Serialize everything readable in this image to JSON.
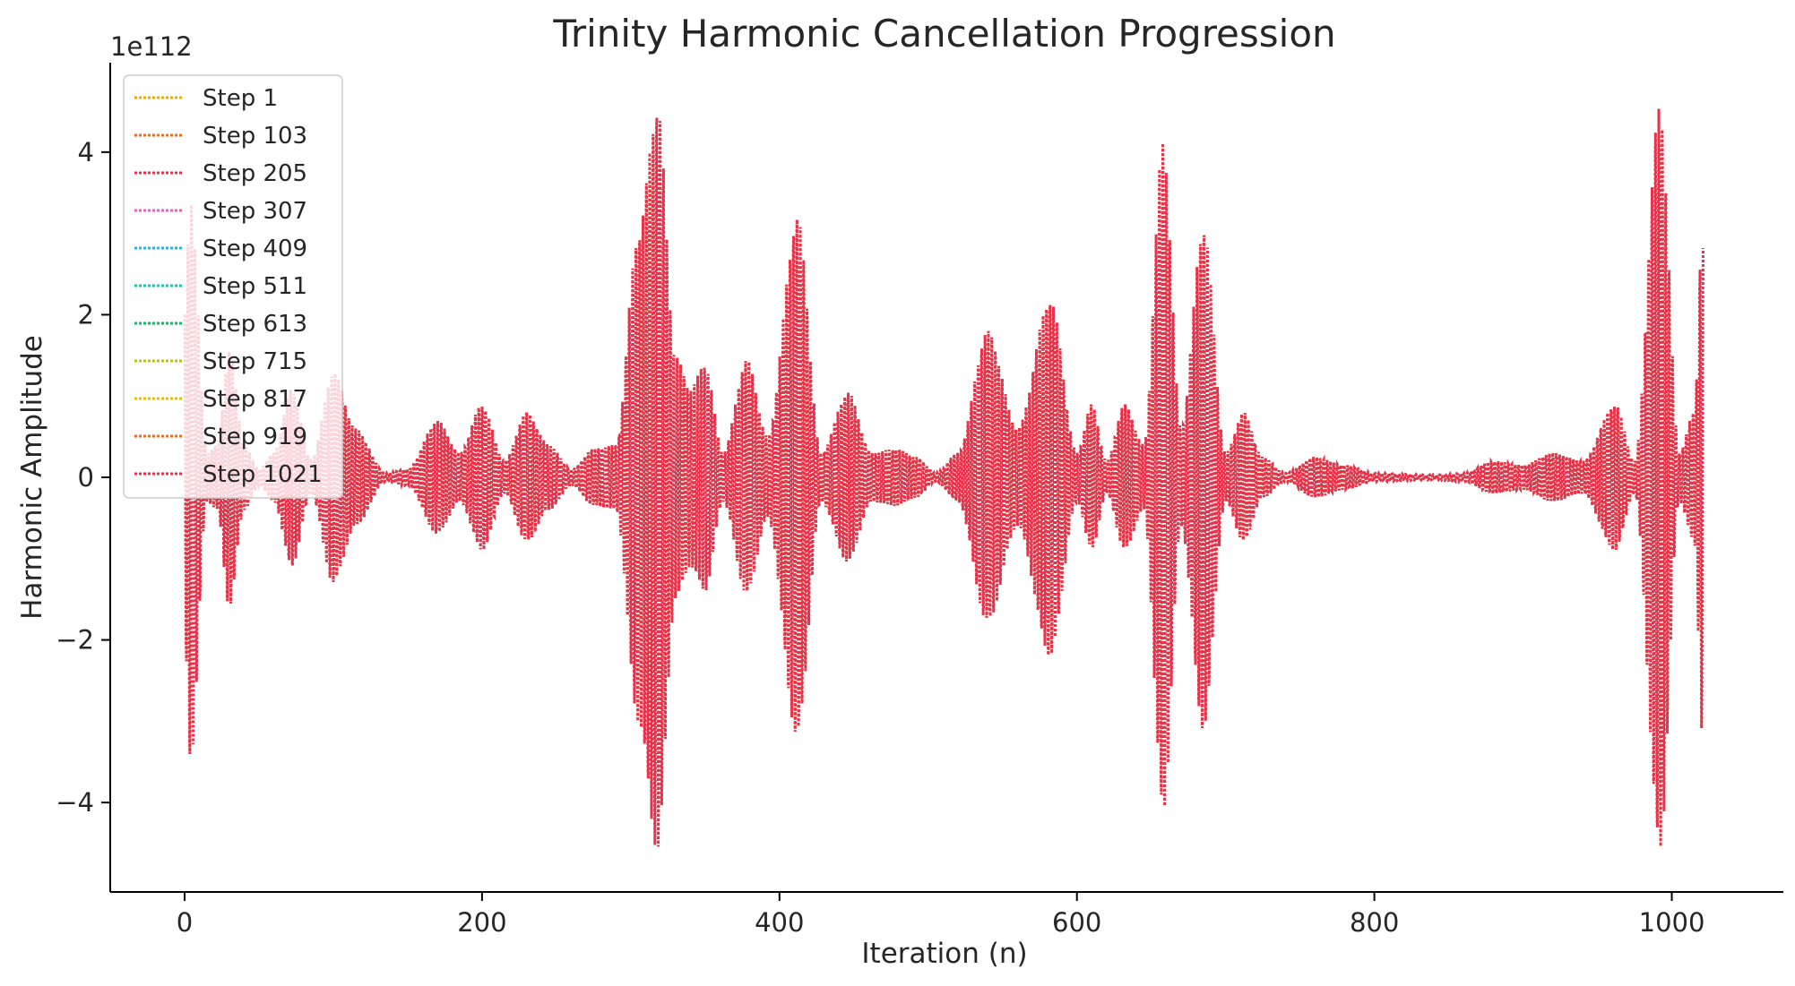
{
  "chart_data": {
    "type": "line",
    "title": "Trinity Harmonic Cancellation Progression",
    "xlabel": "Iteration (n)",
    "ylabel": "Harmonic Amplitude",
    "y_offset_label": "1e112",
    "xlim": [
      -50,
      1075
    ],
    "ylim": [
      -5.1,
      5.1
    ],
    "x_ticks": [
      0,
      200,
      400,
      600,
      800,
      1000
    ],
    "x_tick_labels": [
      "0",
      "200",
      "400",
      "600",
      "800",
      "1000"
    ],
    "y_ticks": [
      -4,
      -2,
      0,
      2,
      4
    ],
    "y_tick_labels": [
      "−4",
      "−2",
      "0",
      "2",
      "4"
    ],
    "line_style": "dotted",
    "grid": false,
    "legend_placement": "upper-left",
    "x_range": [
      0,
      1021
    ],
    "oscillation_period": 2.3,
    "envelope": {
      "x": [
        0,
        4,
        15,
        22,
        30,
        40,
        50,
        60,
        72,
        85,
        100,
        115,
        135,
        150,
        170,
        185,
        200,
        215,
        230,
        245,
        260,
        275,
        290,
        305,
        318,
        330,
        340,
        350,
        362,
        378,
        392,
        412,
        428,
        446,
        462,
        478,
        492,
        505,
        520,
        540,
        560,
        582,
        600,
        610,
        620,
        632,
        645,
        658,
        670,
        685,
        700,
        712,
        725,
        740,
        760,
        780,
        800,
        840,
        860,
        880,
        900,
        920,
        940,
        962,
        975,
        992,
        1005,
        1015,
        1021
      ],
      "y": [
        2.0,
        3.5,
        0.3,
        0.4,
        1.6,
        0.4,
        0.1,
        0.3,
        1.1,
        0.2,
        1.3,
        0.6,
        0.05,
        0.1,
        0.7,
        0.3,
        0.9,
        0.2,
        0.8,
        0.4,
        0.1,
        0.35,
        0.4,
        3.0,
        4.6,
        1.5,
        1.1,
        1.4,
        0.3,
        1.45,
        0.5,
        3.2,
        0.3,
        1.05,
        0.3,
        0.35,
        0.25,
        0.05,
        0.3,
        1.8,
        0.6,
        2.2,
        0.3,
        0.9,
        0.2,
        0.9,
        0.4,
        4.15,
        0.6,
        3.1,
        0.3,
        0.8,
        0.25,
        0.05,
        0.25,
        0.15,
        0.05,
        0.03,
        0.05,
        0.2,
        0.15,
        0.3,
        0.2,
        0.9,
        0.2,
        4.6,
        0.3,
        0.8,
        3.3
      ]
    },
    "series": [
      {
        "name": "Step 1",
        "color": "#f5a700"
      },
      {
        "name": "Step 103",
        "color": "#f46a17"
      },
      {
        "name": "Step 205",
        "color": "#e8304f"
      },
      {
        "name": "Step 307",
        "color": "#f05fc0"
      },
      {
        "name": "Step 409",
        "color": "#23b5e8"
      },
      {
        "name": "Step 511",
        "color": "#16c7b4"
      },
      {
        "name": "Step 613",
        "color": "#11b86a"
      },
      {
        "name": "Step 715",
        "color": "#b9c210"
      },
      {
        "name": "Step 817",
        "color": "#f5b800"
      },
      {
        "name": "Step 919",
        "color": "#f46a17"
      },
      {
        "name": "Step 1021",
        "color": "#e8304f"
      }
    ]
  }
}
